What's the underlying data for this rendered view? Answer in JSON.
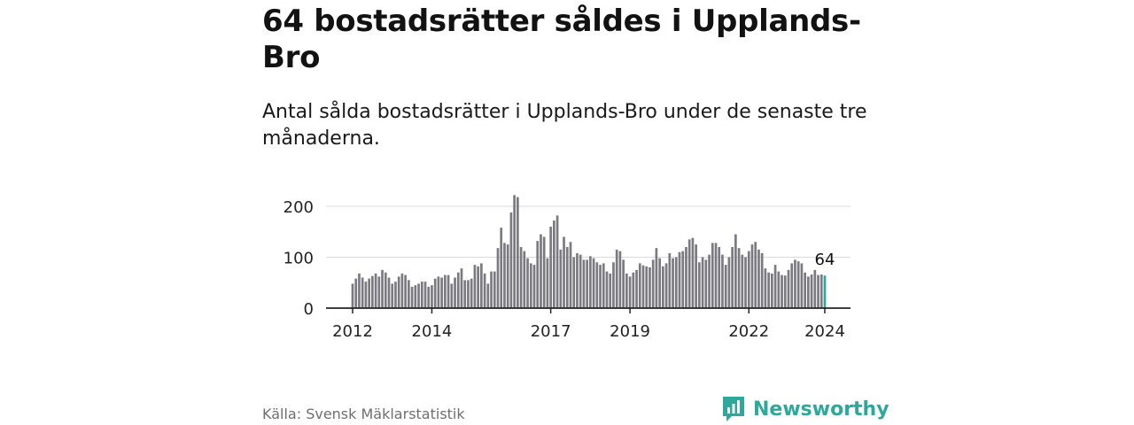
{
  "title": "64 bostadsrätter såldes i Upplands-Bro",
  "subtitle": "Antal sålda bostadsrätter i Upplands-Bro under de senaste tre månaderna.",
  "source": "Källa: Svensk Mäklarstatistik",
  "brand": {
    "name": "Newsworthy",
    "icon": "newsworthy-logo-icon",
    "color": "#2ea89a"
  },
  "colors": {
    "bar": "#7b7a80",
    "highlight": "#2ea89a",
    "grid": "#d9d9d9",
    "axis": "#222222"
  },
  "chart_data": {
    "type": "bar",
    "title": "Antal sålda bostadsrätter i Upplands-Bro",
    "xlabel": "",
    "ylabel": "",
    "ylim": [
      0,
      230
    ],
    "yticks": [
      0,
      100,
      200
    ],
    "xticks": [
      "2012",
      "2014",
      "2017",
      "2019",
      "2022",
      "2024"
    ],
    "series": [
      {
        "name": "Sålda bostadsrätter",
        "values": [
          48,
          58,
          68,
          60,
          52,
          58,
          63,
          68,
          62,
          75,
          70,
          60,
          48,
          52,
          62,
          68,
          65,
          55,
          42,
          45,
          48,
          52,
          52,
          42,
          45,
          58,
          62,
          60,
          65,
          65,
          48,
          60,
          70,
          78,
          55,
          55,
          58,
          85,
          82,
          88,
          68,
          48,
          72,
          72,
          118,
          158,
          128,
          125,
          188,
          222,
          218,
          120,
          112,
          98,
          88,
          85,
          132,
          145,
          140,
          98,
          160,
          172,
          182,
          115,
          140,
          120,
          130,
          100,
          108,
          105,
          95,
          95,
          102,
          98,
          90,
          85,
          88,
          72,
          68,
          90,
          115,
          112,
          95,
          68,
          62,
          70,
          75,
          88,
          84,
          82,
          80,
          95,
          118,
          98,
          82,
          88,
          108,
          98,
          100,
          110,
          112,
          120,
          135,
          138,
          125,
          90,
          100,
          95,
          105,
          128,
          128,
          120,
          105,
          85,
          100,
          120,
          145,
          118,
          105,
          100,
          112,
          125,
          130,
          115,
          108,
          78,
          70,
          68,
          85,
          72,
          65,
          64,
          75,
          88,
          95,
          92,
          88,
          70,
          62,
          66,
          75,
          65,
          66,
          64
        ]
      }
    ],
    "last_value_label": "64"
  }
}
